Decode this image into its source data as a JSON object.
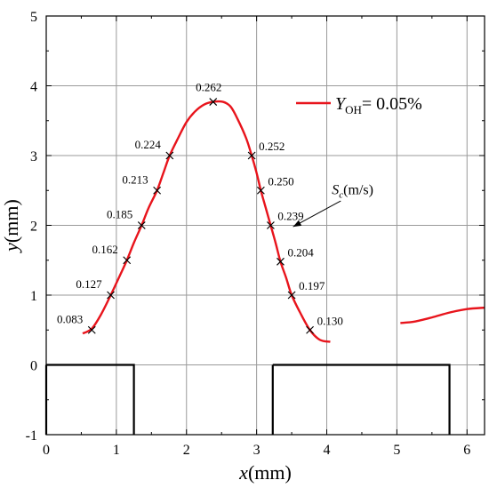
{
  "chart_data": {
    "type": "line",
    "xlabel": {
      "var": "x",
      "unit": "(mm)"
    },
    "ylabel": {
      "var": "y",
      "unit": "(mm)"
    },
    "xlim": [
      0,
      6.25
    ],
    "ylim": [
      -1,
      5
    ],
    "xticks": [
      0,
      1,
      2,
      3,
      4,
      5,
      6
    ],
    "yticks": [
      -1,
      0,
      1,
      2,
      3,
      4,
      5
    ],
    "grid": true,
    "legend": {
      "position": "top-right",
      "entries": [
        {
          "label_var": "Y",
          "label_sub": "OH",
          "label_rest": "= 0.05%",
          "color": "#e8141c"
        }
      ]
    },
    "series": [
      {
        "color": "#e8141c",
        "points": [
          [
            0.52,
            0.45
          ],
          [
            0.65,
            0.52
          ],
          [
            0.78,
            0.72
          ],
          [
            0.92,
            1.0
          ],
          [
            1.05,
            1.28
          ],
          [
            1.15,
            1.5
          ],
          [
            1.25,
            1.75
          ],
          [
            1.36,
            2.0
          ],
          [
            1.46,
            2.25
          ],
          [
            1.58,
            2.5
          ],
          [
            1.67,
            2.75
          ],
          [
            1.76,
            3.0
          ],
          [
            1.88,
            3.25
          ],
          [
            2.0,
            3.48
          ],
          [
            2.12,
            3.63
          ],
          [
            2.25,
            3.73
          ],
          [
            2.38,
            3.77
          ],
          [
            2.52,
            3.77
          ],
          [
            2.63,
            3.7
          ],
          [
            2.73,
            3.52
          ],
          [
            2.85,
            3.25
          ],
          [
            2.93,
            3.0
          ],
          [
            3.0,
            2.75
          ],
          [
            3.06,
            2.5
          ],
          [
            3.13,
            2.25
          ],
          [
            3.2,
            2.0
          ],
          [
            3.27,
            1.75
          ],
          [
            3.34,
            1.48
          ],
          [
            3.42,
            1.25
          ],
          [
            3.5,
            1.0
          ],
          [
            3.62,
            0.75
          ],
          [
            3.76,
            0.5
          ],
          [
            3.9,
            0.36
          ],
          [
            4.05,
            0.33
          ]
        ]
      },
      {
        "color": "#e8141c",
        "points": [
          [
            5.05,
            0.6
          ],
          [
            5.25,
            0.62
          ],
          [
            5.5,
            0.68
          ],
          [
            5.75,
            0.75
          ],
          [
            6.0,
            0.8
          ],
          [
            6.25,
            0.82
          ]
        ]
      }
    ],
    "markers": [
      {
        "x": 0.65,
        "y": 0.5,
        "label": "0.083",
        "side": "left"
      },
      {
        "x": 0.92,
        "y": 1.0,
        "label": "0.127",
        "side": "left"
      },
      {
        "x": 1.15,
        "y": 1.5,
        "label": "0.162",
        "side": "left"
      },
      {
        "x": 1.36,
        "y": 2.0,
        "label": "0.185",
        "side": "left"
      },
      {
        "x": 1.58,
        "y": 2.5,
        "label": "0.213",
        "side": "left"
      },
      {
        "x": 1.76,
        "y": 3.0,
        "label": "0.224",
        "side": "left"
      },
      {
        "x": 2.38,
        "y": 3.77,
        "label": "0.262",
        "side": "top"
      },
      {
        "x": 2.93,
        "y": 3.0,
        "label": "0.252",
        "side": "right"
      },
      {
        "x": 3.06,
        "y": 2.5,
        "label": "0.250",
        "side": "right"
      },
      {
        "x": 3.2,
        "y": 2.0,
        "label": "0.239",
        "side": "right"
      },
      {
        "x": 3.34,
        "y": 1.48,
        "label": "0.204",
        "side": "right"
      },
      {
        "x": 3.5,
        "y": 1.0,
        "label": "0.197",
        "side": "right"
      },
      {
        "x": 3.76,
        "y": 0.5,
        "label": "0.130",
        "side": "right"
      }
    ],
    "annotation": {
      "text_var": "S",
      "text_sub": "c",
      "text_rest": "(m/s)",
      "x": 4.2,
      "y": 2.5,
      "arrow_from": [
        4.2,
        2.35
      ],
      "arrow_to": [
        3.52,
        1.98
      ]
    },
    "obstacles": [
      {
        "x": [
          0,
          1.25
        ],
        "y": [
          -1,
          0
        ]
      },
      {
        "x": [
          3.23,
          5.75
        ],
        "y": [
          -1,
          0
        ]
      }
    ]
  }
}
